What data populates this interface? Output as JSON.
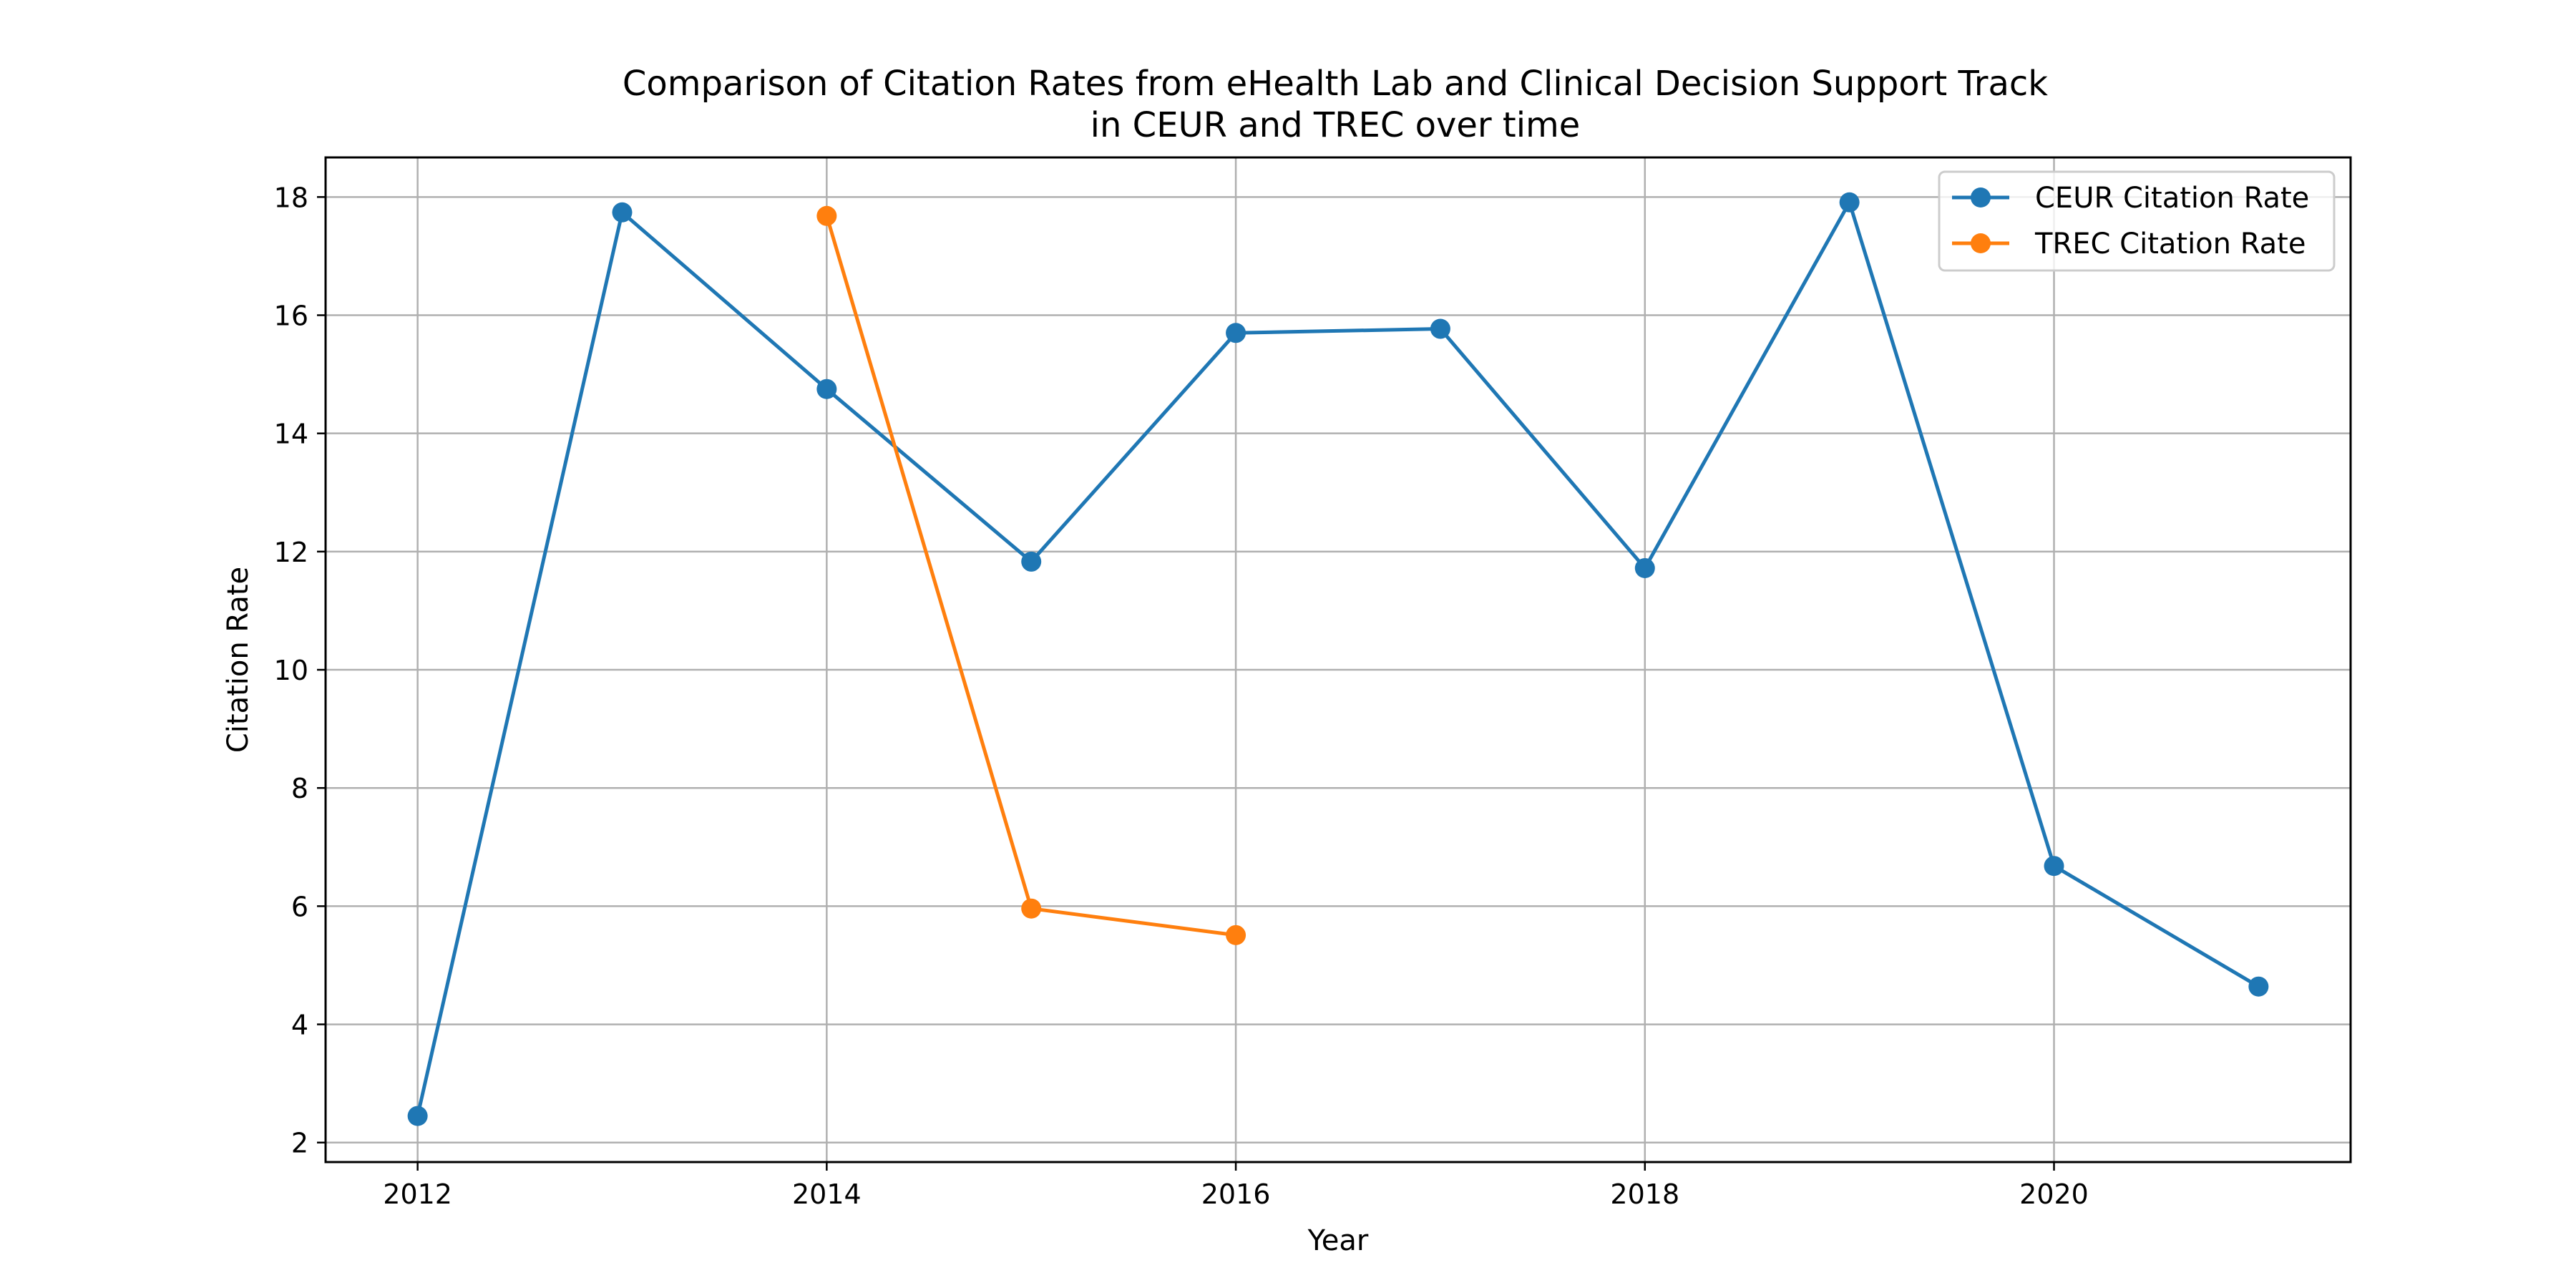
{
  "chart_data": {
    "type": "line",
    "title_lines": [
      "Comparison of Citation Rates from eHealth Lab and Clinical Decision Support Track",
      "in CEUR and TREC over time"
    ],
    "xlabel": "Year",
    "ylabel": "Citation Rate",
    "xlim": [
      2011.55,
      2021.45
    ],
    "ylim": [
      1.67,
      18.67
    ],
    "xticks": [
      2012,
      2014,
      2016,
      2018,
      2020
    ],
    "yticks": [
      2,
      4,
      6,
      8,
      10,
      12,
      14,
      16,
      18
    ],
    "grid": true,
    "legend_position": "top-right",
    "series": [
      {
        "name": "CEUR Citation Rate",
        "color": "#1f77b4",
        "marker": "circle",
        "points": [
          {
            "x": 2012,
            "y": 2.45
          },
          {
            "x": 2013,
            "y": 17.74
          },
          {
            "x": 2014,
            "y": 14.75
          },
          {
            "x": 2015,
            "y": 11.83
          },
          {
            "x": 2016,
            "y": 15.7
          },
          {
            "x": 2017,
            "y": 15.77
          },
          {
            "x": 2018,
            "y": 11.72
          },
          {
            "x": 2019,
            "y": 17.91
          },
          {
            "x": 2020,
            "y": 6.68
          },
          {
            "x": 2021,
            "y": 4.64
          }
        ]
      },
      {
        "name": "TREC Citation Rate",
        "color": "#ff7f0e",
        "marker": "circle",
        "points": [
          {
            "x": 2014,
            "y": 17.68
          },
          {
            "x": 2015,
            "y": 5.96
          },
          {
            "x": 2016,
            "y": 5.51
          }
        ]
      }
    ]
  }
}
